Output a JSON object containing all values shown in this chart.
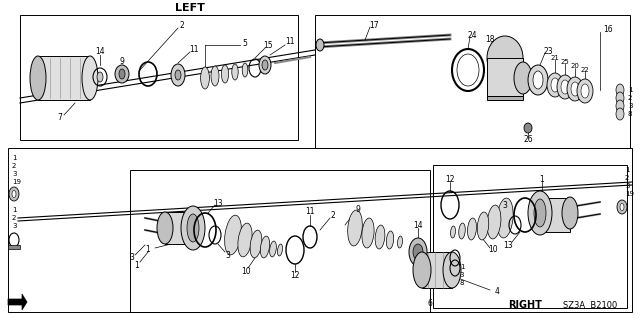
{
  "bg_color": "#ffffff",
  "line_color": "#000000",
  "fig_width": 6.4,
  "fig_height": 3.19,
  "dpi": 100,
  "label_left": "LEFT",
  "label_right": "RIGHT",
  "code": "SZ3A  B2100"
}
